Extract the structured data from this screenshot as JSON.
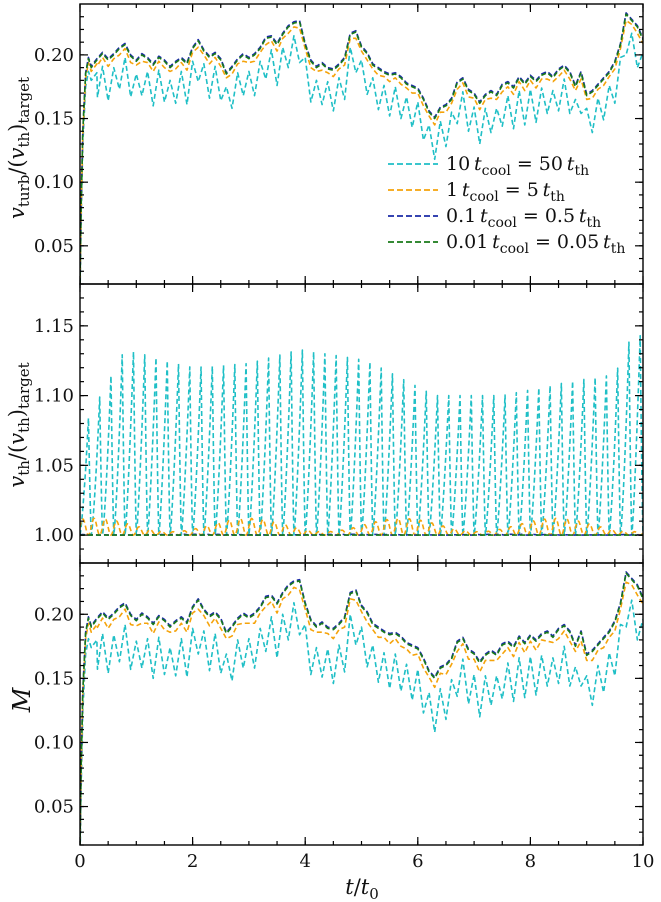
{
  "chart_data": {
    "type": "line",
    "shared_x": {
      "label": "t/t_0",
      "label_parts": {
        "num": "t",
        "den": "t",
        "den_sub": "0"
      },
      "lim": [
        0,
        10
      ],
      "ticks": [
        0,
        2,
        4,
        6,
        8,
        10
      ],
      "tick_labels": [
        "0",
        "2",
        "4",
        "6",
        "8",
        "10"
      ]
    },
    "colors": {
      "10": "#1fbfc6",
      "1": "#f5a30a",
      "0.1": "#1a2aa6",
      "0.01": "#197a19"
    },
    "legend": {
      "placement": "lower right of top panel",
      "entries": [
        {
          "key": "10",
          "label_a": "10",
          "label_b": "= 50",
          "color": "#1fbfc6"
        },
        {
          "key": "1",
          "label_a": "1",
          "label_b": "= 5",
          "color": "#f5a30a"
        },
        {
          "key": "0.1",
          "label_a": "0.1",
          "label_b": "= 0.5",
          "color": "#1a2aa6"
        },
        {
          "key": "0.01",
          "label_a": "0.01",
          "label_b": "= 0.05",
          "color": "#197a19"
        }
      ],
      "t_cool": {
        "base": "t",
        "sub": "cool"
      },
      "t_th": {
        "base": "t",
        "sub": "th"
      }
    },
    "panels": [
      {
        "id": "vturb",
        "ylabel": "v_turb/(v_th)_target",
        "ylim": [
          0.02,
          0.24
        ],
        "yticks": [
          0.05,
          0.1,
          0.15,
          0.2
        ],
        "ytick_labels": [
          "0.05",
          "0.10",
          "0.15",
          "0.20"
        ],
        "base_curve": {
          "x": [
            0.0,
            0.02,
            0.05,
            0.1,
            0.15,
            0.2,
            0.3,
            0.4,
            0.5,
            0.6,
            0.7,
            0.8,
            0.9,
            1.0,
            1.1,
            1.2,
            1.3,
            1.4,
            1.5,
            1.6,
            1.7,
            1.8,
            1.9,
            2.0,
            2.1,
            2.2,
            2.3,
            2.4,
            2.5,
            2.6,
            2.7,
            2.8,
            2.9,
            3.0,
            3.1,
            3.2,
            3.3,
            3.4,
            3.5,
            3.6,
            3.7,
            3.8,
            3.9,
            4.0,
            4.1,
            4.2,
            4.3,
            4.4,
            4.5,
            4.6,
            4.7,
            4.8,
            4.9,
            5.0,
            5.1,
            5.2,
            5.3,
            5.4,
            5.5,
            5.6,
            5.7,
            5.8,
            5.9,
            6.0,
            6.1,
            6.2,
            6.3,
            6.4,
            6.5,
            6.6,
            6.7,
            6.8,
            6.9,
            7.0,
            7.1,
            7.2,
            7.3,
            7.4,
            7.5,
            7.6,
            7.7,
            7.8,
            7.9,
            8.0,
            8.1,
            8.2,
            8.3,
            8.4,
            8.5,
            8.6,
            8.7,
            8.8,
            8.9,
            9.0,
            9.1,
            9.2,
            9.3,
            9.4,
            9.5,
            9.6,
            9.7,
            9.8,
            9.9,
            10.0
          ],
          "y": [
            0.02,
            0.08,
            0.14,
            0.185,
            0.197,
            0.19,
            0.196,
            0.201,
            0.196,
            0.2,
            0.205,
            0.208,
            0.199,
            0.195,
            0.2,
            0.197,
            0.192,
            0.198,
            0.195,
            0.19,
            0.194,
            0.197,
            0.193,
            0.205,
            0.211,
            0.203,
            0.198,
            0.201,
            0.196,
            0.185,
            0.19,
            0.196,
            0.2,
            0.197,
            0.2,
            0.205,
            0.213,
            0.214,
            0.208,
            0.216,
            0.222,
            0.225,
            0.226,
            0.208,
            0.195,
            0.19,
            0.193,
            0.189,
            0.188,
            0.192,
            0.197,
            0.216,
            0.218,
            0.206,
            0.201,
            0.192,
            0.189,
            0.186,
            0.184,
            0.185,
            0.182,
            0.177,
            0.175,
            0.173,
            0.165,
            0.155,
            0.15,
            0.158,
            0.16,
            0.165,
            0.178,
            0.181,
            0.172,
            0.169,
            0.162,
            0.168,
            0.171,
            0.168,
            0.176,
            0.178,
            0.174,
            0.182,
            0.177,
            0.183,
            0.179,
            0.184,
            0.186,
            0.182,
            0.188,
            0.191,
            0.186,
            0.175,
            0.186,
            0.168,
            0.171,
            0.176,
            0.181,
            0.186,
            0.194,
            0.208,
            0.232,
            0.227,
            0.222,
            0.212
          ]
        },
        "series": [
          {
            "key": "0.01",
            "y_offset": 0.0,
            "ripple": 0.0,
            "period": 0
          },
          {
            "key": "0.1",
            "y_offset": 0.001,
            "ripple": 0.0,
            "period": 0
          },
          {
            "key": "1",
            "y_offset": -0.003,
            "ripple": 0.002,
            "period": 0.2
          },
          {
            "key": "10",
            "y_offset": -0.01,
            "ripple": 0.022,
            "period": 0.2
          }
        ]
      },
      {
        "id": "vth",
        "ylabel": "v_th/(v_th)_target",
        "ylim": [
          0.98,
          1.18
        ],
        "yticks": [
          1.0,
          1.05,
          1.1,
          1.15
        ],
        "ytick_labels": [
          "1.00",
          "1.05",
          "1.10",
          "1.15"
        ],
        "series": [
          {
            "key": "0.01",
            "baseline": 1.0,
            "ripple": 0.0,
            "period": 0
          },
          {
            "key": "0.1",
            "baseline": 1.0,
            "ripple": 0.0006,
            "period": 0.2
          },
          {
            "key": "1",
            "baseline": 1.0,
            "ripple": 0.012,
            "period": 0.2
          },
          {
            "key": "10",
            "baseline": 1.0,
            "ripple": 0.12,
            "period": 0.2,
            "peak_envelope": {
              "x": [
                0.1,
                0.8,
                2.0,
                3.0,
                3.9,
                5.1,
                6.3,
                7.5,
                8.7,
                9.5,
                9.8
              ],
              "y": [
                1.08,
                1.133,
                1.12,
                1.123,
                1.133,
                1.125,
                1.1,
                1.1,
                1.11,
                1.115,
                1.143
              ]
            }
          }
        ]
      },
      {
        "id": "mach",
        "ylabel": "M",
        "ylim": [
          0.02,
          0.24
        ],
        "yticks": [
          0.05,
          0.1,
          0.15,
          0.2
        ],
        "ytick_labels": [
          "0.05",
          "0.10",
          "0.15",
          "0.20"
        ],
        "same_base_as": "vturb",
        "series": [
          {
            "key": "0.01",
            "y_offset": 0.0,
            "ripple": 0.0,
            "period": 0
          },
          {
            "key": "0.1",
            "y_offset": 0.001,
            "ripple": 0.0,
            "period": 0
          },
          {
            "key": "1",
            "y_offset": -0.004,
            "ripple": 0.003,
            "period": 0.2
          },
          {
            "key": "10",
            "y_offset": -0.016,
            "ripple": 0.026,
            "period": 0.2
          }
        ]
      }
    ]
  }
}
